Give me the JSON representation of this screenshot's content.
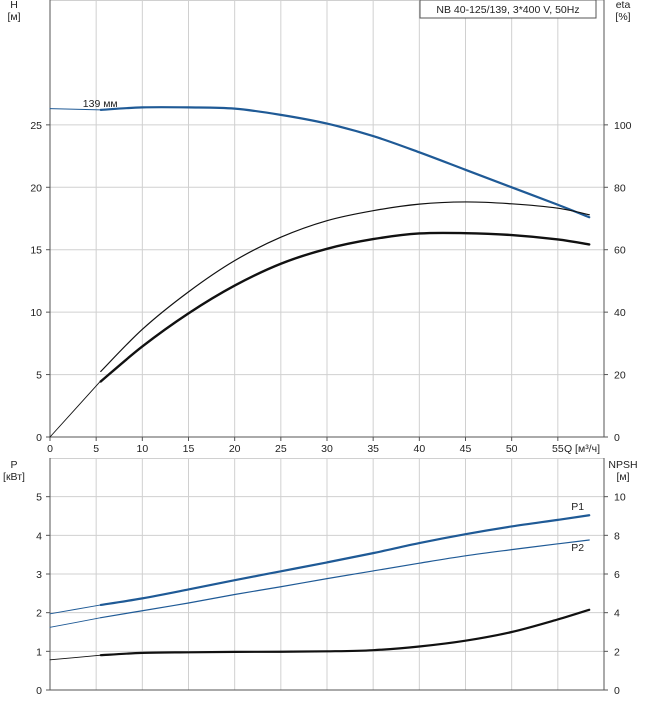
{
  "chart_data": [
    {
      "type": "line",
      "title": "NB 40-125/139, 3*400 V, 50Hz",
      "xlabel": "Q [м³/ч]",
      "ylabel_left": [
        "H",
        "[м]"
      ],
      "ylabel_right": [
        "eta",
        "[%]"
      ],
      "xlim": [
        0,
        60
      ],
      "ylim_left": [
        0,
        35
      ],
      "ylim_right": [
        0,
        140
      ],
      "x_ticks": [
        0,
        5,
        10,
        15,
        20,
        25,
        30,
        35,
        40,
        45,
        50,
        55
      ],
      "y_ticks_left": [
        0,
        5,
        10,
        15,
        20,
        25
      ],
      "y_ticks_right": [
        0,
        20,
        40,
        60,
        80,
        100
      ],
      "grid": true,
      "series": [
        {
          "name": "139 мм",
          "axis": "left",
          "color": "#1f5a96",
          "width": 2.2,
          "points": [
            [
              5.5,
              26.2
            ],
            [
              10,
              26.4
            ],
            [
              15,
              26.4
            ],
            [
              20,
              26.3
            ],
            [
              25,
              25.8
            ],
            [
              30,
              25.1
            ],
            [
              35,
              24.1
            ],
            [
              40,
              22.8
            ],
            [
              45,
              21.4
            ],
            [
              50,
              20.0
            ],
            [
              55,
              18.6
            ],
            [
              58.4,
              17.6
            ]
          ],
          "ext_points": [
            [
              0,
              26.3
            ],
            [
              5.5,
              26.2
            ]
          ]
        },
        {
          "axis": "right",
          "color": "#111111",
          "width": 1.2,
          "points": [
            [
              5.5,
              21
            ],
            [
              10,
              34.5
            ],
            [
              15,
              46.5
            ],
            [
              20,
              56.5
            ],
            [
              25,
              64
            ],
            [
              30,
              69.3
            ],
            [
              35,
              72.5
            ],
            [
              40,
              74.6
            ],
            [
              45,
              75.3
            ],
            [
              50,
              74.7
            ],
            [
              55,
              73.3
            ],
            [
              58.4,
              71.2
            ]
          ],
          "ext_points": [
            [
              0,
              0
            ],
            [
              5.5,
              18
            ]
          ]
        },
        {
          "axis": "right",
          "color": "#111111",
          "width": 2.4,
          "points": [
            [
              5.5,
              17.8
            ],
            [
              10,
              29
            ],
            [
              15,
              39.6
            ],
            [
              20,
              48.5
            ],
            [
              25,
              55.5
            ],
            [
              30,
              60.3
            ],
            [
              35,
              63.4
            ],
            [
              40,
              65.2
            ],
            [
              45,
              65.3
            ],
            [
              50,
              64.7
            ],
            [
              55,
              63.3
            ],
            [
              58.4,
              61.7
            ]
          ]
        }
      ]
    },
    {
      "type": "line",
      "title": "",
      "xlabel": "",
      "ylabel_left": [
        "P",
        "[кВт]"
      ],
      "ylabel_right": [
        "NPSH",
        "[м]"
      ],
      "xlim": [
        0,
        60
      ],
      "ylim_left": [
        0,
        6
      ],
      "ylim_right": [
        0,
        12
      ],
      "y_ticks_left": [
        0,
        1,
        2,
        3,
        4,
        5
      ],
      "y_ticks_right": [
        0,
        2,
        4,
        6,
        8,
        10
      ],
      "grid": true,
      "series": [
        {
          "name": "P1",
          "axis": "left",
          "color": "#1f5a96",
          "width": 2.2,
          "points": [
            [
              5.5,
              2.2
            ],
            [
              10,
              2.37
            ],
            [
              15,
              2.6
            ],
            [
              20,
              2.84
            ],
            [
              25,
              3.07
            ],
            [
              30,
              3.3
            ],
            [
              35,
              3.54
            ],
            [
              40,
              3.8
            ],
            [
              45,
              4.03
            ],
            [
              50,
              4.23
            ],
            [
              55,
              4.4
            ],
            [
              58.4,
              4.52
            ]
          ],
          "ext_points": [
            [
              0,
              1.97
            ],
            [
              5.5,
              2.2
            ]
          ]
        },
        {
          "name": "P2",
          "axis": "left",
          "color": "#1f5a96",
          "width": 1.2,
          "points": [
            [
              5.5,
              1.87
            ],
            [
              10,
              2.05
            ],
            [
              15,
              2.25
            ],
            [
              20,
              2.47
            ],
            [
              25,
              2.67
            ],
            [
              30,
              2.88
            ],
            [
              35,
              3.08
            ],
            [
              40,
              3.28
            ],
            [
              45,
              3.47
            ],
            [
              50,
              3.63
            ],
            [
              55,
              3.78
            ],
            [
              58.4,
              3.88
            ]
          ],
          "ext_points": [
            [
              0,
              1.62
            ],
            [
              5.5,
              1.87
            ]
          ]
        },
        {
          "axis": "right",
          "color": "#111111",
          "width": 2.2,
          "points": [
            [
              5.5,
              1.8
            ],
            [
              10,
              1.92
            ],
            [
              15,
              1.95
            ],
            [
              20,
              1.97
            ],
            [
              25,
              1.98
            ],
            [
              30,
              2.0
            ],
            [
              35,
              2.06
            ],
            [
              40,
              2.25
            ],
            [
              45,
              2.55
            ],
            [
              50,
              3.0
            ],
            [
              55,
              3.65
            ],
            [
              58.4,
              4.15
            ]
          ],
          "ext_points": [
            [
              0,
              1.56
            ],
            [
              5.5,
              1.8
            ]
          ]
        }
      ]
    }
  ]
}
